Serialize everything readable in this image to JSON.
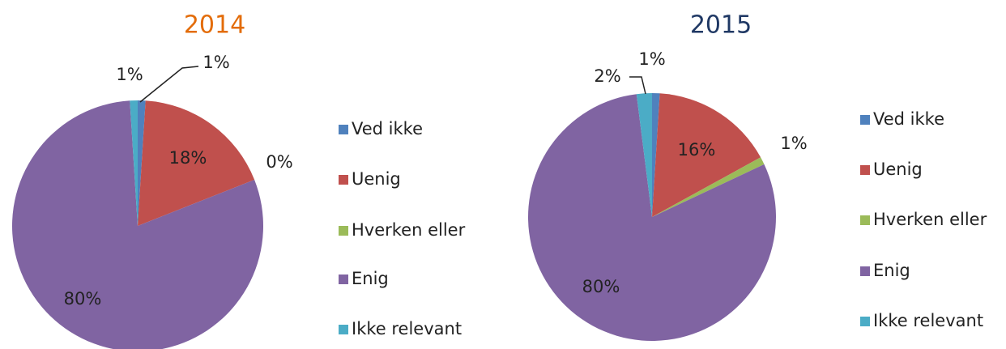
{
  "chart_data": [
    {
      "type": "pie",
      "title": "2014",
      "title_color": "#e36c09",
      "categories": [
        "Ved ikke",
        "Uenig",
        "Hverken eller",
        "Enig",
        "Ikke relevant"
      ],
      "values": [
        1,
        18,
        0,
        80,
        1
      ],
      "value_labels": [
        "1%",
        "18%",
        "0%",
        "80%",
        "1%"
      ],
      "colors": [
        "#4f81bd",
        "#c0504d",
        "#9bbb59",
        "#8064a2",
        "#4bacc6"
      ],
      "legend": "right"
    },
    {
      "type": "pie",
      "title": "2015",
      "title_color": "#1f3864",
      "categories": [
        "Ved ikke",
        "Uenig",
        "Hverken eller",
        "Enig",
        "Ikke relevant"
      ],
      "values": [
        1,
        16,
        1,
        80,
        2
      ],
      "value_labels": [
        "1%",
        "16%",
        "1%",
        "80%",
        "2%"
      ],
      "colors": [
        "#4f81bd",
        "#c0504d",
        "#9bbb59",
        "#8064a2",
        "#4bacc6"
      ],
      "legend": "right"
    }
  ]
}
